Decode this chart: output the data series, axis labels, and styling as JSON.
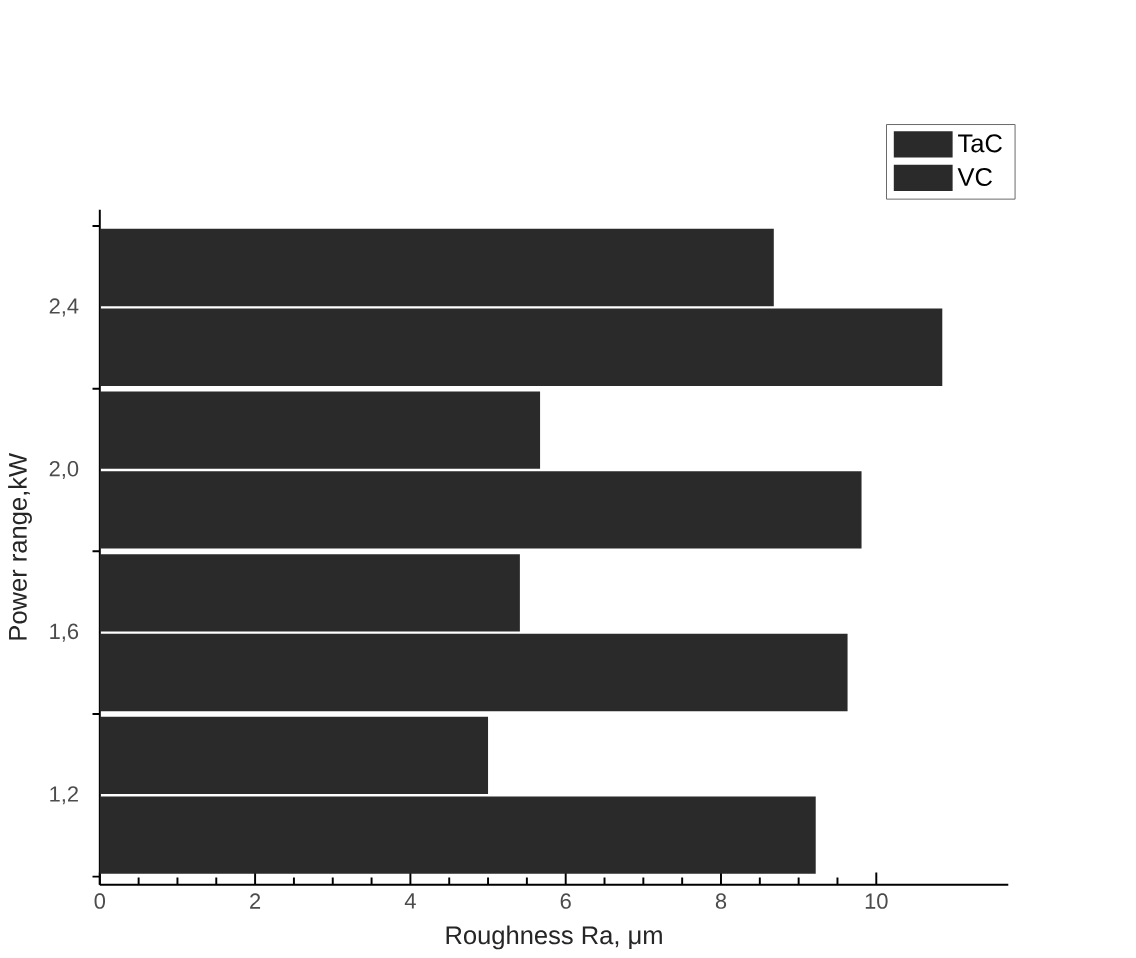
{
  "chart_data": {
    "type": "bar",
    "orientation": "horizontal",
    "xlabel": "Roughness Ra, μm",
    "ylabel": "Power range,kW",
    "categories": [
      "2,4",
      "2,0",
      "1,6",
      "1,2"
    ],
    "series": [
      {
        "name": "TaC",
        "color": "#2a2a2a",
        "values": [
          8.68,
          5.67,
          5.41,
          5.0
        ]
      },
      {
        "name": "VC",
        "color": "#2a2a2a",
        "values": [
          10.85,
          9.81,
          9.63,
          9.22
        ]
      }
    ],
    "xlim": [
      0,
      11.7
    ],
    "xticks": [
      0,
      2,
      4,
      6,
      8,
      10
    ],
    "legend": "top right"
  }
}
